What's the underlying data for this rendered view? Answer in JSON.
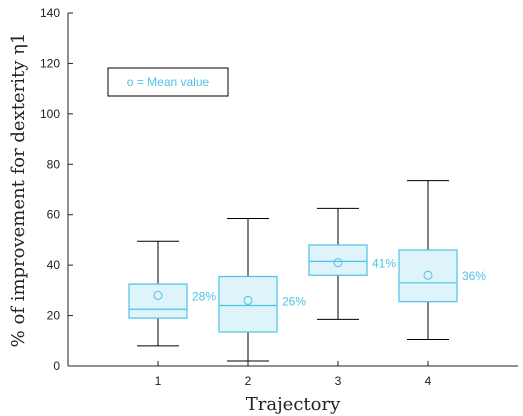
{
  "chart_data": {
    "type": "box",
    "categories": [
      "1",
      "2",
      "3",
      "4"
    ],
    "xlabel": "Trajectory",
    "ylabel": "% of improvement for dexterity η1",
    "ylim": [
      0,
      140
    ],
    "yticks": [
      0,
      20,
      40,
      60,
      80,
      100,
      120,
      140
    ],
    "grid": false,
    "legend": {
      "text": "o = Mean value",
      "placement": "top-left"
    },
    "boxes": [
      {
        "category": "1",
        "whisker_low": 8,
        "q1": 19,
        "median": 22.5,
        "q3": 32.5,
        "whisker_high": 49.5,
        "mean": 28,
        "mean_label": "28%"
      },
      {
        "category": "2",
        "whisker_low": 2,
        "q1": 13.5,
        "median": 24,
        "q3": 35.5,
        "whisker_high": 58.5,
        "mean": 26,
        "mean_label": "26%"
      },
      {
        "category": "3",
        "whisker_low": 18.5,
        "q1": 36,
        "median": 41.5,
        "q3": 48,
        "whisker_high": 62.5,
        "mean": 41,
        "mean_label": "41%"
      },
      {
        "category": "4",
        "whisker_low": 10.5,
        "q1": 25.5,
        "median": 33,
        "q3": 46,
        "whisker_high": 73.5,
        "mean": 36,
        "mean_label": "36%"
      }
    ],
    "colors": {
      "box_stroke": "#4cc3e6",
      "box_fill": "#dff3fa",
      "whisker": "#000000",
      "label": "#4cc3e6",
      "axis": "#222222"
    }
  }
}
